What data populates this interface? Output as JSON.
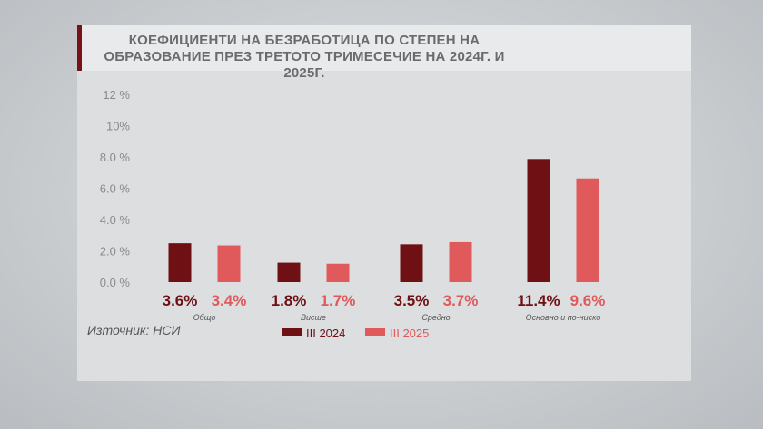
{
  "title": "КОЕФИЦИЕНТИ НА БЕЗРАБОТИЦА ПО СТЕПЕН НА ОБРАЗОВАНИЕ ПРЕЗ ТРЕТОТО ТРИМЕСЕЧИЕ НА 2024Г. И 2025Г.",
  "source": "Източник: НСИ",
  "colors": {
    "series_2024": "#6e1014",
    "series_2025": "#e05a5c",
    "axis_text": "#8a8a8a"
  },
  "chart_data": {
    "type": "bar",
    "title": "КОЕФИЦИЕНТИ НА БЕЗРАБОТИЦА ПО СТЕПЕН НА ОБРАЗОВАНИЕ ПРЕЗ ТРЕТОТО ТРИМЕСЕЧИЕ НА 2024Г. И 2025Г.",
    "categories": [
      "Общо",
      "Висше",
      "Средно",
      "Основно и по-ниско"
    ],
    "series": [
      {
        "name": "III 2024",
        "values": [
          3.6,
          1.8,
          3.5,
          11.4
        ],
        "labels": [
          "3.6%",
          "1.8%",
          "3.5%",
          "11.4%"
        ]
      },
      {
        "name": "III 2025",
        "values": [
          3.4,
          1.7,
          3.7,
          9.6
        ],
        "labels": [
          "3.4%",
          "1.7%",
          "3.7%",
          "9.6%"
        ]
      }
    ],
    "ylim": [
      0,
      12
    ],
    "yticks": [
      0,
      2,
      4,
      6,
      8,
      10,
      12
    ],
    "ytick_labels": [
      "0.0 %",
      "2.0 %",
      "4.0 %",
      "6.0 %",
      "8.0 %",
      "10%",
      "12 %"
    ],
    "xlabel": "",
    "ylabel": "",
    "grid": false,
    "legend_position": "bottom"
  }
}
